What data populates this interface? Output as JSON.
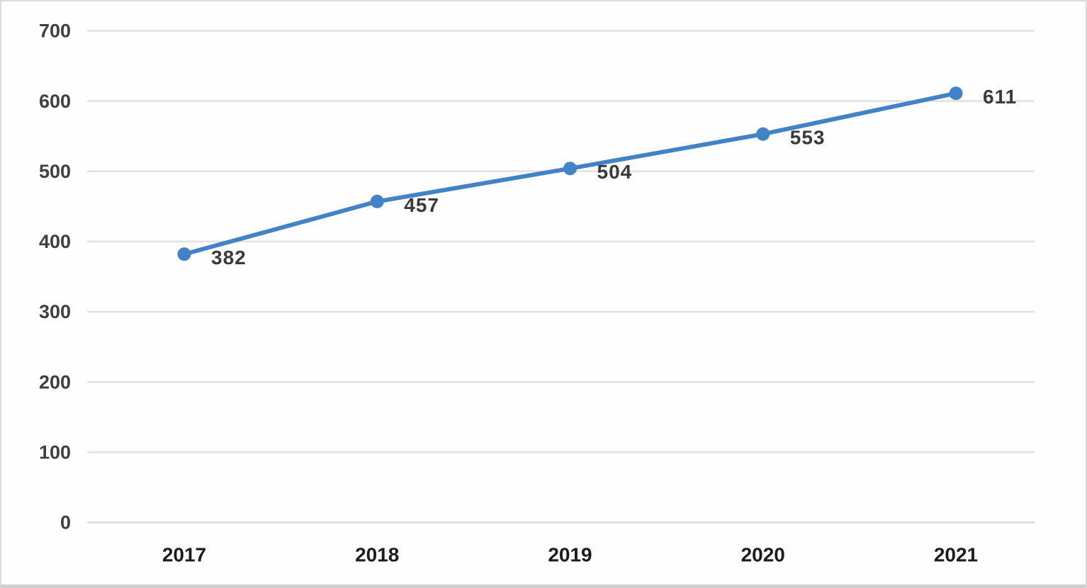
{
  "chart_data": {
    "type": "line",
    "title": "",
    "xlabel": "",
    "ylabel": "",
    "categories": [
      "2017",
      "2018",
      "2019",
      "2020",
      "2021"
    ],
    "series": [
      {
        "name": "series-1",
        "values": [
          382,
          457,
          504,
          553,
          611
        ]
      }
    ],
    "data_labels_shown": true,
    "ylim": [
      0,
      700
    ],
    "yticks": [
      0,
      100,
      200,
      300,
      400,
      500,
      600,
      700
    ],
    "grid": "horizontal",
    "legend_position": "none",
    "colors": {
      "line": "#4183c6",
      "marker": "#4183c6",
      "gridline": "#e1e1e1",
      "zero_gridline": "#dadada",
      "y_tick_label": "#3f3f3f",
      "x_tick_label": "#1c1c1c",
      "data_label": "#3a3a3a",
      "background": "#fefefe",
      "frame_border": "#d9d9d9"
    }
  }
}
